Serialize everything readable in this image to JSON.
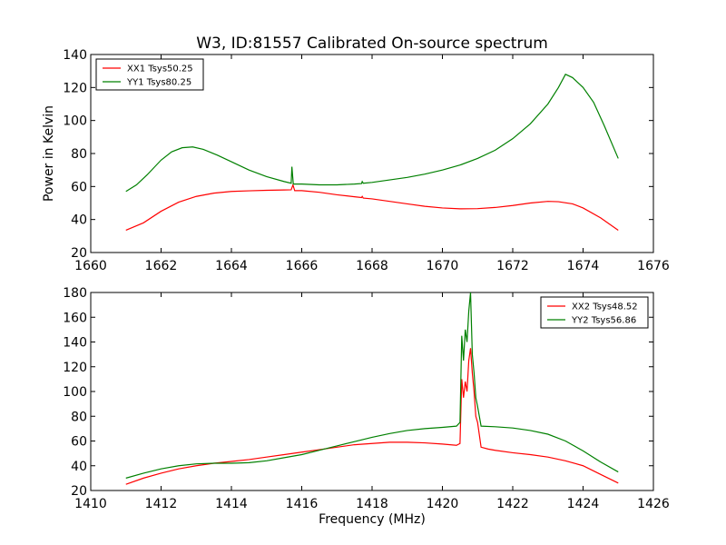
{
  "figure_title": "W3, ID:81557 Calibrated On-source spectrum",
  "chart_data": [
    {
      "type": "line",
      "title": "W3, ID:81557 Calibrated On-source spectrum",
      "xlabel": "",
      "ylabel": "Power in Kelvin",
      "xlim": [
        1660,
        1676
      ],
      "ylim": [
        20,
        140
      ],
      "xticks": [
        "1660",
        "1662",
        "1664",
        "1666",
        "1668",
        "1670",
        "1672",
        "1674",
        "1676"
      ],
      "yticks": [
        "20",
        "40",
        "60",
        "80",
        "100",
        "120",
        "140"
      ],
      "legend_position": "top-left",
      "grid": false,
      "series": [
        {
          "name": "XX1 Tsys50.25",
          "color": "#ff0000",
          "points": [
            [
              1661,
              33.5
            ],
            [
              1661.5,
              38
            ],
            [
              1662,
              45
            ],
            [
              1662.5,
              50.5
            ],
            [
              1663,
              54
            ],
            [
              1663.5,
              56
            ],
            [
              1664,
              57
            ],
            [
              1664.5,
              57.4
            ],
            [
              1665,
              57.7
            ],
            [
              1665.5,
              57.9
            ],
            [
              1665.7,
              58
            ],
            [
              1665.75,
              61
            ],
            [
              1665.8,
              57.5
            ],
            [
              1666,
              57.5
            ],
            [
              1666.5,
              56.5
            ],
            [
              1667,
              55
            ],
            [
              1667.5,
              53.8
            ],
            [
              1667.7,
              53.3
            ],
            [
              1667.72,
              54
            ],
            [
              1667.75,
              53
            ],
            [
              1668,
              52.5
            ],
            [
              1668.5,
              51
            ],
            [
              1669,
              49.5
            ],
            [
              1669.5,
              48
            ],
            [
              1670,
              47
            ],
            [
              1670.5,
              46.5
            ],
            [
              1671,
              46.6
            ],
            [
              1671.5,
              47.3
            ],
            [
              1672,
              48.5
            ],
            [
              1672.5,
              50
            ],
            [
              1673,
              51
            ],
            [
              1673.3,
              50.8
            ],
            [
              1673.7,
              49.5
            ],
            [
              1674,
              47
            ],
            [
              1674.5,
              41
            ],
            [
              1675,
              33.5
            ]
          ]
        },
        {
          "name": "YY1 Tsys80.25",
          "color": "#008000",
          "points": [
            [
              1661,
              57
            ],
            [
              1661.3,
              61
            ],
            [
              1661.6,
              67
            ],
            [
              1662,
              76
            ],
            [
              1662.3,
              81
            ],
            [
              1662.6,
              83.5
            ],
            [
              1662.9,
              84
            ],
            [
              1663.2,
              82.5
            ],
            [
              1663.6,
              79
            ],
            [
              1664,
              75
            ],
            [
              1664.5,
              70
            ],
            [
              1665,
              66
            ],
            [
              1665.5,
              63
            ],
            [
              1665.7,
              62
            ],
            [
              1665.72,
              72
            ],
            [
              1665.76,
              61.5
            ],
            [
              1666,
              61.5
            ],
            [
              1666.5,
              61
            ],
            [
              1667,
              61
            ],
            [
              1667.5,
              61.5
            ],
            [
              1667.7,
              61.8
            ],
            [
              1667.72,
              63
            ],
            [
              1667.75,
              62
            ],
            [
              1668,
              62.5
            ],
            [
              1668.5,
              64
            ],
            [
              1669,
              65.5
            ],
            [
              1669.5,
              67.5
            ],
            [
              1670,
              70
            ],
            [
              1670.5,
              73
            ],
            [
              1671,
              77
            ],
            [
              1671.5,
              82
            ],
            [
              1672,
              89
            ],
            [
              1672.5,
              98
            ],
            [
              1673,
              110
            ],
            [
              1673.3,
              120
            ],
            [
              1673.5,
              128
            ],
            [
              1673.7,
              126
            ],
            [
              1674,
              120
            ],
            [
              1674.3,
              111
            ],
            [
              1674.6,
              97
            ],
            [
              1675,
              77
            ]
          ]
        }
      ]
    },
    {
      "type": "line",
      "title": "",
      "xlabel": "Frequency (MHz)",
      "ylabel": "",
      "xlim": [
        1410,
        1426
      ],
      "ylim": [
        20,
        180
      ],
      "xticks": [
        "1410",
        "1412",
        "1414",
        "1416",
        "1418",
        "1420",
        "1422",
        "1424",
        "1426"
      ],
      "yticks": [
        "20",
        "40",
        "60",
        "80",
        "100",
        "120",
        "140",
        "160",
        "180"
      ],
      "legend_position": "top-right",
      "grid": false,
      "series": [
        {
          "name": "XX2 Tsys48.52",
          "color": "#ff0000",
          "points": [
            [
              1411,
              25
            ],
            [
              1411.5,
              30
            ],
            [
              1412,
              34
            ],
            [
              1412.5,
              37.5
            ],
            [
              1413,
              40
            ],
            [
              1413.5,
              42
            ],
            [
              1414,
              43.5
            ],
            [
              1414.5,
              45
            ],
            [
              1415,
              47
            ],
            [
              1415.5,
              49
            ],
            [
              1416,
              51
            ],
            [
              1416.5,
              53
            ],
            [
              1417,
              55
            ],
            [
              1417.5,
              57
            ],
            [
              1418,
              58
            ],
            [
              1418.5,
              59
            ],
            [
              1419,
              59
            ],
            [
              1419.5,
              58.5
            ],
            [
              1420,
              57.5
            ],
            [
              1420.4,
              56.5
            ],
            [
              1420.5,
              58
            ],
            [
              1420.55,
              110
            ],
            [
              1420.6,
              95
            ],
            [
              1420.65,
              108
            ],
            [
              1420.7,
              100
            ],
            [
              1420.75,
              125
            ],
            [
              1420.8,
              135
            ],
            [
              1420.85,
              115
            ],
            [
              1420.9,
              100
            ],
            [
              1420.95,
              80
            ],
            [
              1421,
              75
            ],
            [
              1421.05,
              65
            ],
            [
              1421.1,
              55
            ],
            [
              1421.3,
              53.5
            ],
            [
              1421.5,
              52.5
            ],
            [
              1422,
              50.5
            ],
            [
              1422.5,
              49
            ],
            [
              1423,
              47
            ],
            [
              1423.5,
              44
            ],
            [
              1424,
              40
            ],
            [
              1424.5,
              33
            ],
            [
              1425,
              26
            ]
          ]
        },
        {
          "name": "YY2 Tsys56.86",
          "color": "#008000",
          "points": [
            [
              1411,
              30
            ],
            [
              1411.5,
              34
            ],
            [
              1412,
              37.5
            ],
            [
              1412.5,
              40
            ],
            [
              1413,
              41.5
            ],
            [
              1413.5,
              42
            ],
            [
              1414,
              42
            ],
            [
              1414.5,
              42.5
            ],
            [
              1415,
              44
            ],
            [
              1415.5,
              46.5
            ],
            [
              1416,
              49
            ],
            [
              1416.5,
              52.5
            ],
            [
              1417,
              56
            ],
            [
              1417.5,
              59.5
            ],
            [
              1418,
              63
            ],
            [
              1418.5,
              66
            ],
            [
              1419,
              68.5
            ],
            [
              1419.5,
              70
            ],
            [
              1420,
              71
            ],
            [
              1420.4,
              72
            ],
            [
              1420.5,
              75
            ],
            [
              1420.55,
              145
            ],
            [
              1420.6,
              125
            ],
            [
              1420.65,
              150
            ],
            [
              1420.7,
              140
            ],
            [
              1420.75,
              165
            ],
            [
              1420.8,
              180
            ],
            [
              1420.85,
              130
            ],
            [
              1420.9,
              115
            ],
            [
              1420.95,
              95
            ],
            [
              1421,
              88
            ],
            [
              1421.05,
              80
            ],
            [
              1421.1,
              72
            ],
            [
              1421.5,
              71.5
            ],
            [
              1422,
              70.5
            ],
            [
              1422.5,
              68.5
            ],
            [
              1423,
              65.5
            ],
            [
              1423.5,
              60
            ],
            [
              1424,
              52
            ],
            [
              1424.5,
              43
            ],
            [
              1425,
              35
            ]
          ]
        }
      ]
    }
  ]
}
